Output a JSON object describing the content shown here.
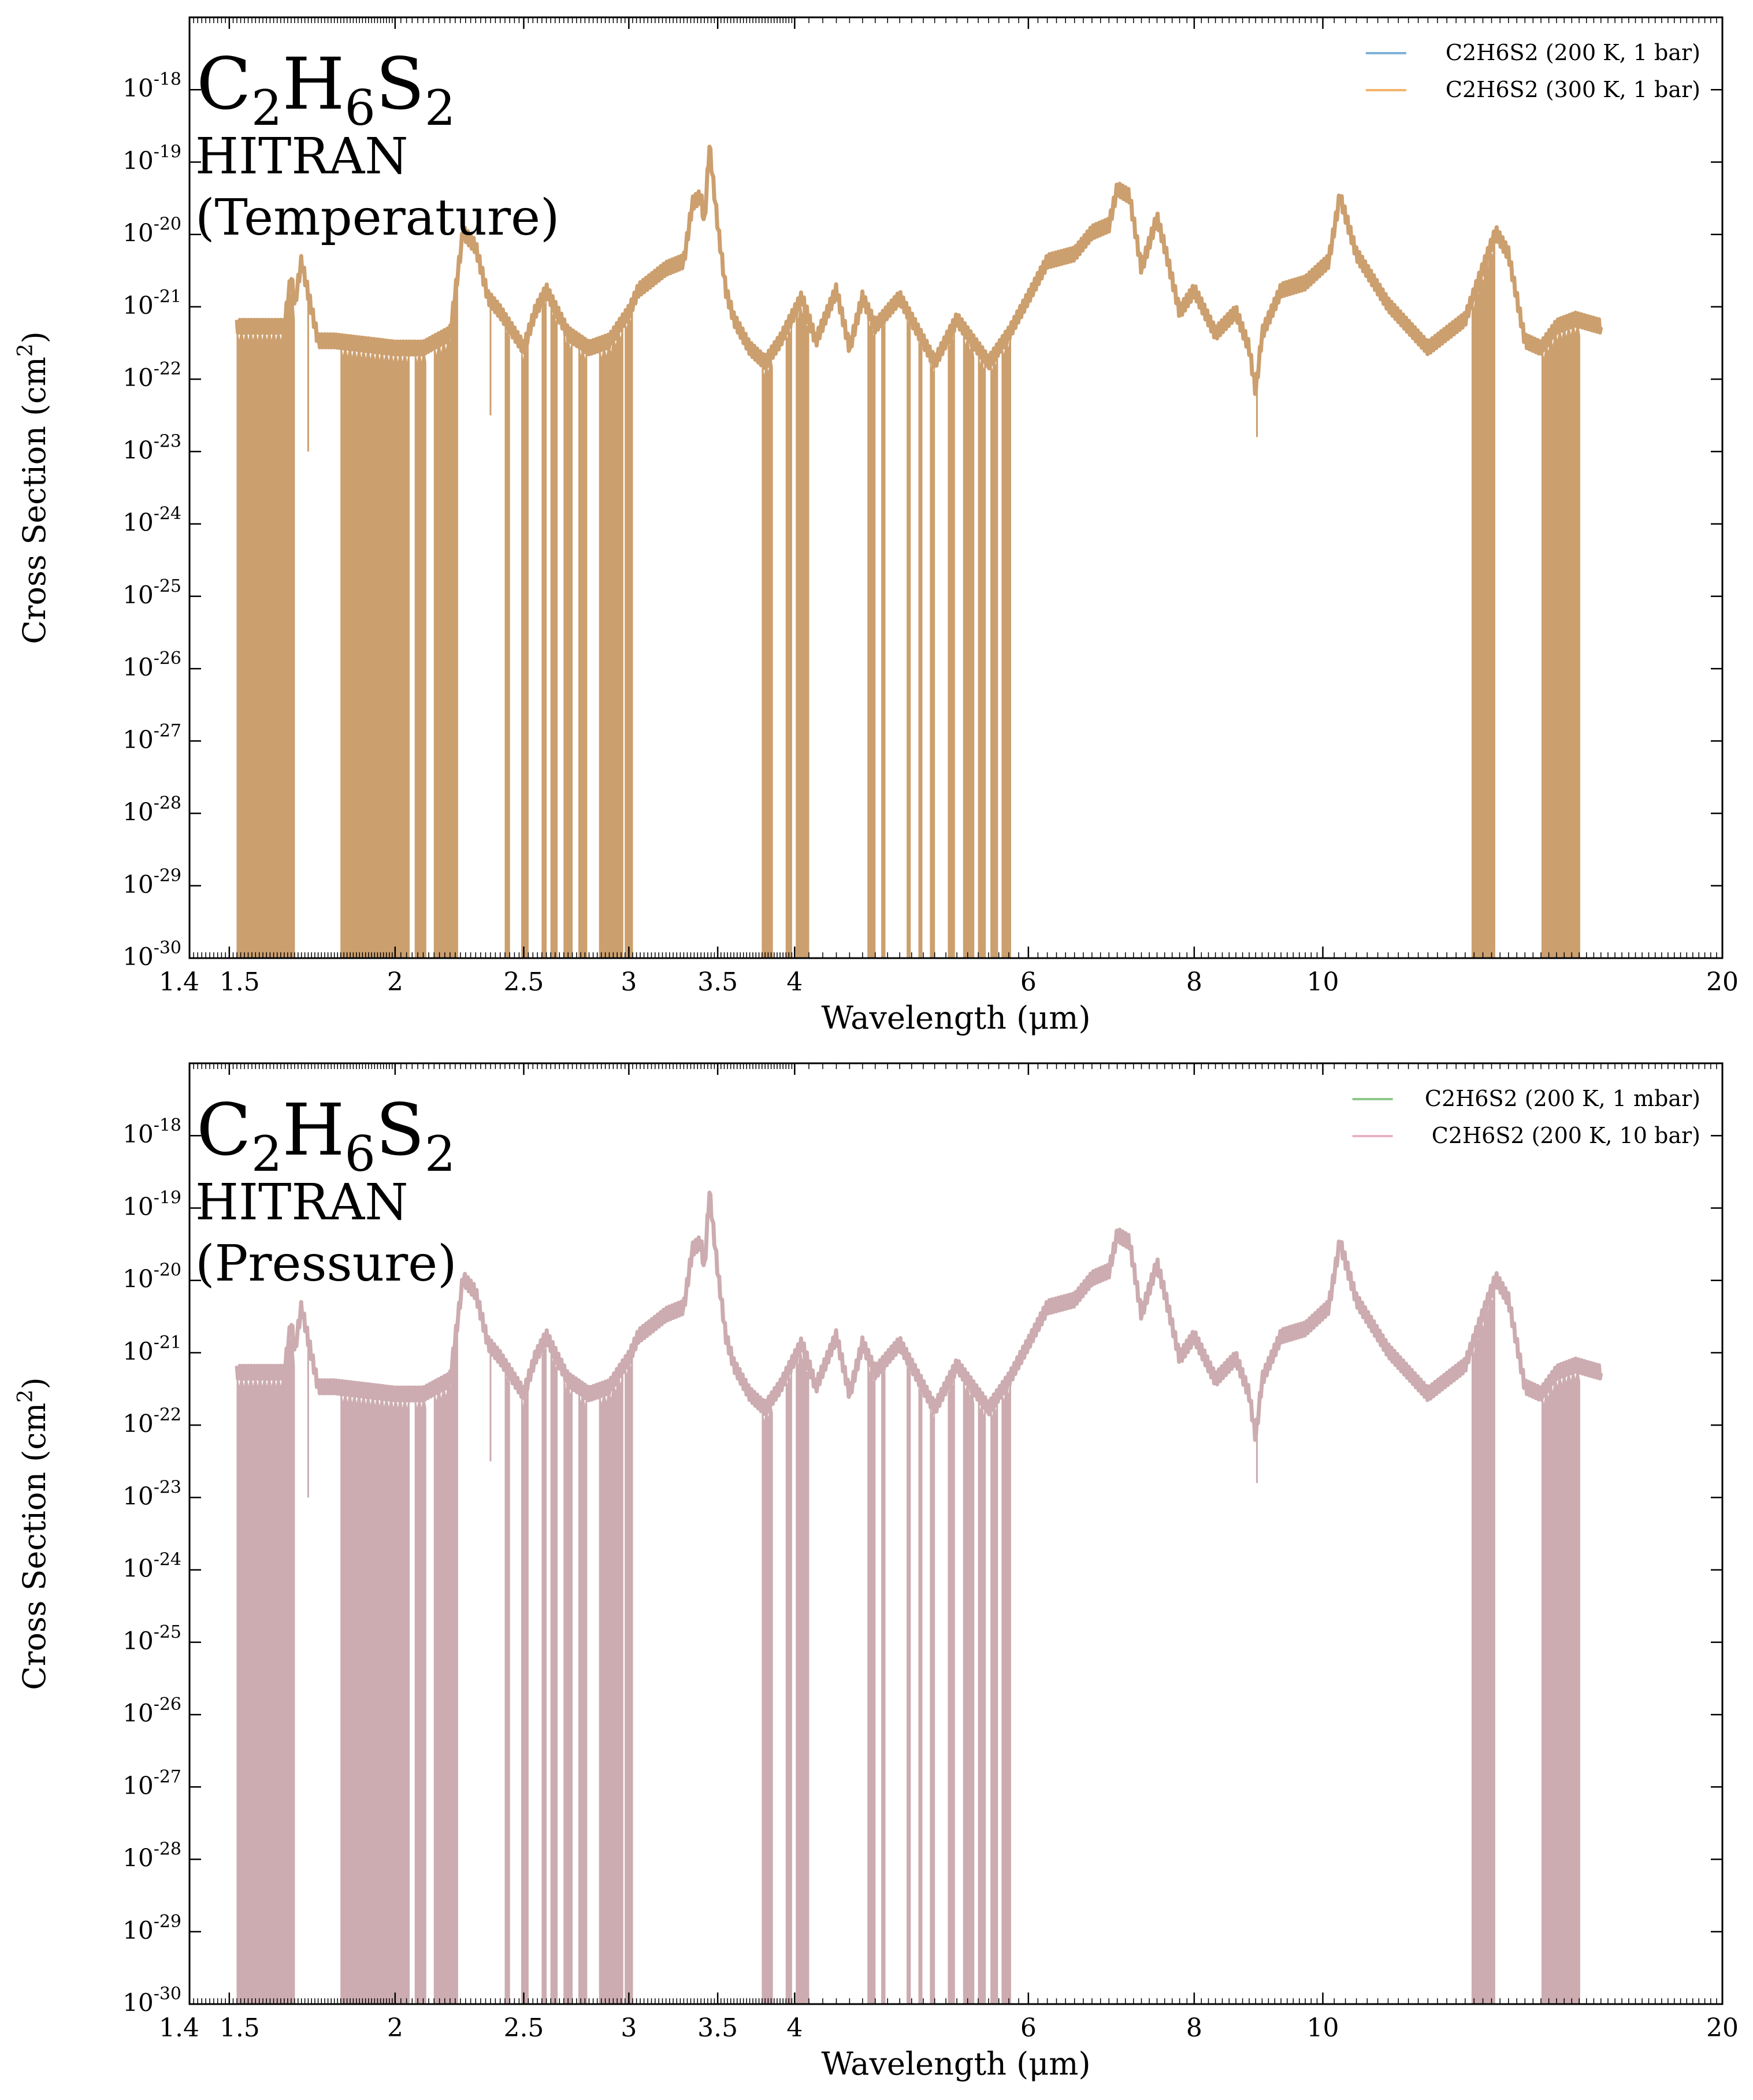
{
  "chart_data": [
    {
      "type": "line",
      "title_main": "C",
      "title_sub": [
        "2",
        "6",
        "2"
      ],
      "title_parts": [
        "C",
        "H",
        "S"
      ],
      "subtitle": "HITRAN",
      "subtitle2": "(Temperature)",
      "xlabel": "Wavelength (μm)",
      "ylabel": "Cross Section (cm²)",
      "ylabel_text": "Cross Section (cm",
      "ylabel_sup": "2",
      "ylabel_close": ")",
      "xscale": "log",
      "yscale": "log",
      "xlim": [
        1.4,
        20
      ],
      "ylim": [
        1e-30,
        1e-17
      ],
      "xticks": [
        1.4,
        1.5,
        2,
        2.5,
        3,
        3.5,
        4,
        6,
        8,
        10,
        20
      ],
      "xtick_labels": [
        "1.4",
        "1.5",
        "2",
        "2.5",
        "3",
        "3.5",
        "4",
        "6",
        "8",
        "10",
        "20"
      ],
      "yticks_exp": [
        "-18",
        "-19",
        "-20",
        "-21",
        "-22",
        "-23",
        "-24",
        "-25",
        "-26",
        "-27",
        "-28",
        "-29",
        "-30"
      ],
      "ytick_base": "10",
      "legend_position": "top-right",
      "series": [
        {
          "name": "C2H6S2 (200 K, 1 bar)",
          "color": "#7fb1d8"
        },
        {
          "name": "C2H6S2 (300 K, 1 bar)",
          "color": "#f5b36b"
        }
      ],
      "fill_color": "#cc9f6e",
      "envelope": {
        "x": [
          1.52,
          1.6,
          1.65,
          1.67,
          1.68,
          1.7,
          1.75,
          1.8,
          2.0,
          2.1,
          2.2,
          2.25,
          2.3,
          2.35,
          2.4,
          2.5,
          2.55,
          2.6,
          2.7,
          2.8,
          2.9,
          3.0,
          3.05,
          3.1,
          3.2,
          3.3,
          3.35,
          3.4,
          3.42,
          3.45,
          3.5,
          3.55,
          3.6,
          3.7,
          3.8,
          3.9,
          4.05,
          4.15,
          4.3,
          4.4,
          4.5,
          4.6,
          4.8,
          5.0,
          5.1,
          5.3,
          5.6,
          5.8,
          6.0,
          6.2,
          6.5,
          6.7,
          6.9,
          7.0,
          7.15,
          7.3,
          7.5,
          7.6,
          7.8,
          8.0,
          8.3,
          8.6,
          8.8,
          8.9,
          9.0,
          9.3,
          9.7,
          10.1,
          10.3,
          10.6,
          11.2,
          12.0,
          12.8,
          13.2,
          13.5,
          13.8,
          14.2,
          14.6,
          15.0,
          15.5,
          16.2
        ],
        "logy": [
          -21.3,
          -21.3,
          -21.3,
          -20.6,
          -21.0,
          -20.4,
          -21.5,
          -21.5,
          -21.6,
          -21.6,
          -21.4,
          -20.0,
          -20.2,
          -20.9,
          -21.1,
          -21.6,
          -21.1,
          -20.8,
          -21.4,
          -21.6,
          -21.5,
          -21.1,
          -20.8,
          -20.7,
          -20.5,
          -20.4,
          -19.6,
          -19.5,
          -19.9,
          -18.8,
          -19.9,
          -20.8,
          -21.2,
          -21.6,
          -21.8,
          -21.5,
          -20.9,
          -21.5,
          -20.8,
          -21.6,
          -20.9,
          -21.3,
          -20.9,
          -21.5,
          -21.8,
          -21.2,
          -21.8,
          -21.4,
          -20.9,
          -20.4,
          -20.3,
          -20.0,
          -19.9,
          -19.4,
          -19.5,
          -20.5,
          -19.8,
          -20.2,
          -21.1,
          -20.8,
          -21.4,
          -21.1,
          -21.6,
          -22.2,
          -21.4,
          -20.8,
          -20.7,
          -20.4,
          -19.5,
          -20.3,
          -21.0,
          -21.6,
          -21.2,
          -20.5,
          -20.0,
          -20.3,
          -21.5,
          -21.6,
          -21.3,
          -21.2,
          -21.3
        ]
      },
      "bands": [
        [
          1.52,
          1.68
        ],
        [
          1.82,
          2.05
        ],
        [
          2.07,
          2.11
        ],
        [
          2.14,
          2.23
        ],
        [
          2.42,
          2.44
        ],
        [
          2.49,
          2.52
        ],
        [
          2.58,
          2.6
        ],
        [
          2.62,
          2.65
        ],
        [
          2.68,
          2.72
        ],
        [
          2.75,
          2.79
        ],
        [
          2.85,
          2.97
        ],
        [
          2.98,
          3.02
        ],
        [
          3.78,
          3.85
        ],
        [
          3.94,
          3.98
        ],
        [
          4.01,
          4.1
        ],
        [
          4.54,
          4.6
        ],
        [
          4.65,
          4.68
        ],
        [
          4.86,
          4.89
        ],
        [
          4.96,
          4.99
        ],
        [
          5.06,
          5.1
        ],
        [
          5.22,
          5.28
        ],
        [
          5.36,
          5.46
        ],
        [
          5.5,
          5.57
        ],
        [
          5.62,
          5.69
        ],
        [
          5.73,
          5.82
        ],
        [
          12.95,
          13.48
        ],
        [
          14.62,
          15.62
        ]
      ],
      "gap_markers": [
        [
          1.72,
          -23.0
        ],
        [
          2.36,
          -22.5
        ],
        [
          8.92,
          -22.8
        ]
      ]
    },
    {
      "type": "line",
      "title_main": "C",
      "title_sub": [
        "2",
        "6",
        "2"
      ],
      "title_parts": [
        "C",
        "H",
        "S"
      ],
      "subtitle": "HITRAN",
      "subtitle2": "(Pressure)",
      "xlabel": "Wavelength (μm)",
      "ylabel": "Cross Section (cm²)",
      "ylabel_text": "Cross Section (cm",
      "ylabel_sup": "2",
      "ylabel_close": ")",
      "xscale": "log",
      "yscale": "log",
      "xlim": [
        1.4,
        20
      ],
      "ylim": [
        1e-30,
        1e-17
      ],
      "xticks": [
        1.4,
        1.5,
        2,
        2.5,
        3,
        3.5,
        4,
        6,
        8,
        10,
        20
      ],
      "xtick_labels": [
        "1.4",
        "1.5",
        "2",
        "2.5",
        "3",
        "3.5",
        "4",
        "6",
        "8",
        "10",
        "20"
      ],
      "yticks_exp": [
        "-18",
        "-19",
        "-20",
        "-21",
        "-22",
        "-23",
        "-24",
        "-25",
        "-26",
        "-27",
        "-28",
        "-29",
        "-30"
      ],
      "ytick_base": "10",
      "legend_position": "top-right",
      "series": [
        {
          "name": "C2H6S2 (200 K, 1 mbar)",
          "color": "#8cc88c"
        },
        {
          "name": "C2H6S2 (200 K, 10 bar)",
          "color": "#e8b2c5"
        }
      ],
      "fill_color": "#ccacb0",
      "envelope": {
        "x": [
          1.52,
          1.6,
          1.65,
          1.67,
          1.68,
          1.7,
          1.75,
          1.8,
          2.0,
          2.1,
          2.2,
          2.25,
          2.3,
          2.35,
          2.4,
          2.5,
          2.55,
          2.6,
          2.7,
          2.8,
          2.9,
          3.0,
          3.05,
          3.1,
          3.2,
          3.3,
          3.35,
          3.4,
          3.42,
          3.45,
          3.5,
          3.55,
          3.6,
          3.7,
          3.8,
          3.9,
          4.05,
          4.15,
          4.3,
          4.4,
          4.5,
          4.6,
          4.8,
          5.0,
          5.1,
          5.3,
          5.6,
          5.8,
          6.0,
          6.2,
          6.5,
          6.7,
          6.9,
          7.0,
          7.15,
          7.3,
          7.5,
          7.6,
          7.8,
          8.0,
          8.3,
          8.6,
          8.8,
          8.9,
          9.0,
          9.3,
          9.7,
          10.1,
          10.3,
          10.6,
          11.2,
          12.0,
          12.8,
          13.2,
          13.5,
          13.8,
          14.2,
          14.6,
          15.0,
          15.5,
          16.2
        ],
        "logy": [
          -21.3,
          -21.3,
          -21.3,
          -20.6,
          -21.0,
          -20.4,
          -21.5,
          -21.5,
          -21.6,
          -21.6,
          -21.4,
          -20.0,
          -20.2,
          -20.9,
          -21.1,
          -21.6,
          -21.1,
          -20.8,
          -21.4,
          -21.6,
          -21.5,
          -21.1,
          -20.8,
          -20.7,
          -20.5,
          -20.4,
          -19.6,
          -19.5,
          -19.9,
          -18.8,
          -19.9,
          -20.8,
          -21.2,
          -21.6,
          -21.8,
          -21.5,
          -20.9,
          -21.5,
          -20.8,
          -21.6,
          -20.9,
          -21.3,
          -20.9,
          -21.5,
          -21.8,
          -21.2,
          -21.8,
          -21.4,
          -20.9,
          -20.4,
          -20.3,
          -20.0,
          -19.9,
          -19.4,
          -19.5,
          -20.5,
          -19.8,
          -20.2,
          -21.1,
          -20.8,
          -21.4,
          -21.1,
          -21.6,
          -22.2,
          -21.4,
          -20.8,
          -20.7,
          -20.4,
          -19.5,
          -20.3,
          -21.0,
          -21.6,
          -21.2,
          -20.5,
          -20.0,
          -20.3,
          -21.5,
          -21.6,
          -21.3,
          -21.2,
          -21.3
        ]
      },
      "bands": [
        [
          1.52,
          1.68
        ],
        [
          1.82,
          2.05
        ],
        [
          2.07,
          2.11
        ],
        [
          2.14,
          2.23
        ],
        [
          2.42,
          2.44
        ],
        [
          2.49,
          2.52
        ],
        [
          2.58,
          2.6
        ],
        [
          2.62,
          2.65
        ],
        [
          2.68,
          2.72
        ],
        [
          2.75,
          2.79
        ],
        [
          2.85,
          2.97
        ],
        [
          2.98,
          3.02
        ],
        [
          3.78,
          3.85
        ],
        [
          3.94,
          3.98
        ],
        [
          4.01,
          4.1
        ],
        [
          4.54,
          4.6
        ],
        [
          4.65,
          4.68
        ],
        [
          4.86,
          4.89
        ],
        [
          4.96,
          4.99
        ],
        [
          5.06,
          5.1
        ],
        [
          5.22,
          5.28
        ],
        [
          5.36,
          5.46
        ],
        [
          5.5,
          5.57
        ],
        [
          5.62,
          5.69
        ],
        [
          5.73,
          5.82
        ],
        [
          12.95,
          13.48
        ],
        [
          14.62,
          15.62
        ]
      ],
      "gap_markers": [
        [
          1.72,
          -23.0
        ],
        [
          2.36,
          -22.5
        ],
        [
          8.92,
          -22.8
        ]
      ]
    }
  ]
}
